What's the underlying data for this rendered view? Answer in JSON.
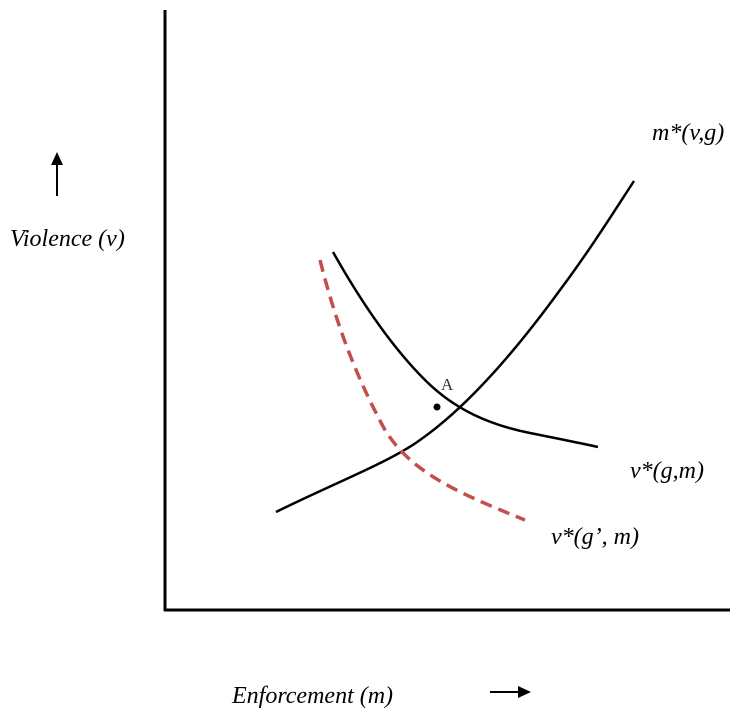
{
  "axes": {
    "y_label": "Violence (v)",
    "x_label": "Enforcement (m)"
  },
  "curves": [
    {
      "label": "m*(v,g)"
    },
    {
      "label": "v*(g,m)"
    },
    {
      "label": "v*(g’, m)"
    }
  ],
  "point": {
    "label": "A"
  }
}
